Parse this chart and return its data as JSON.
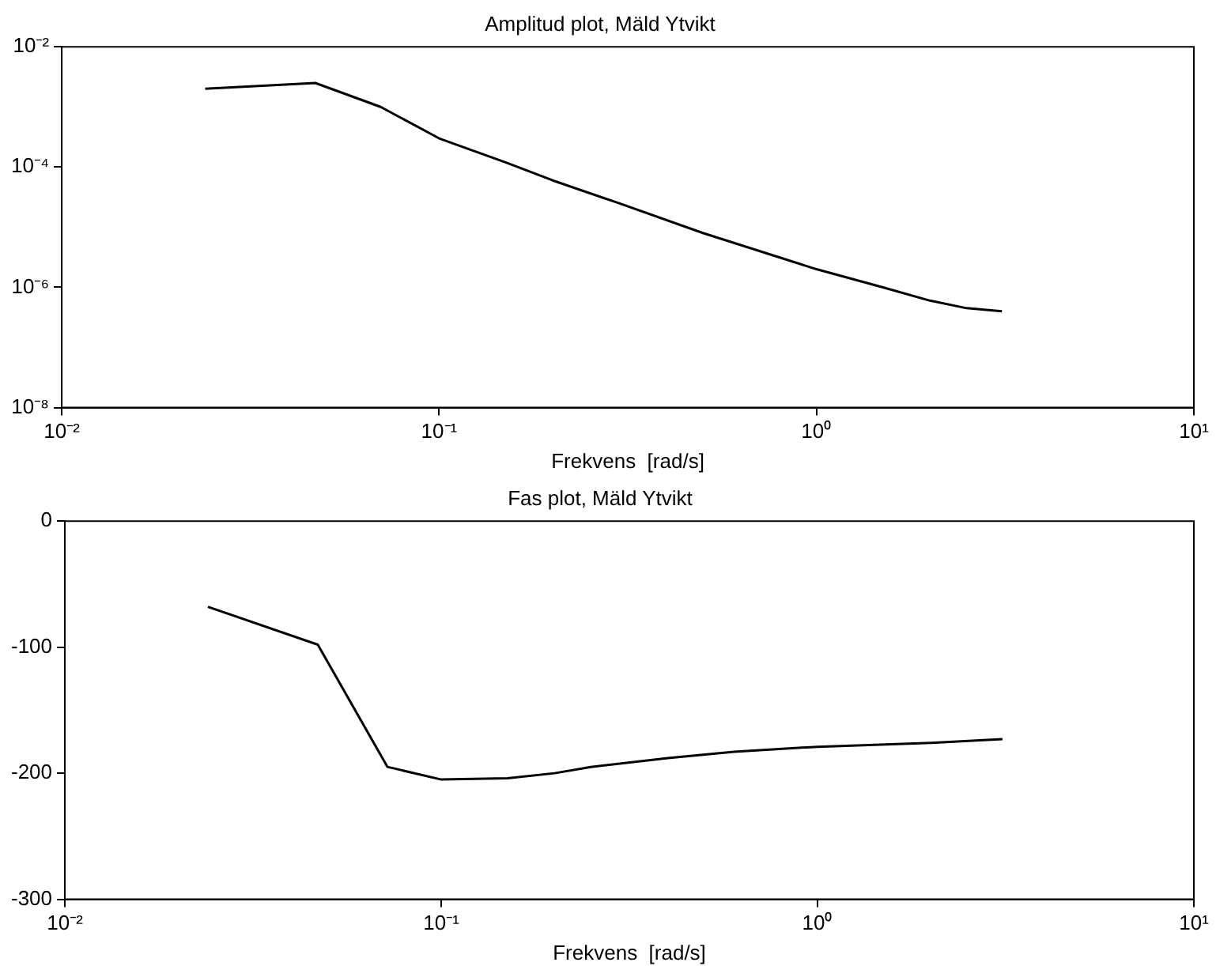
{
  "chart_data": [
    {
      "type": "line",
      "title": "Amplitud plot, Mäld Ytvikt",
      "xlabel": "Frekvens  [rad/s]",
      "log": "xy",
      "grid": false,
      "legend": false,
      "marker": "none",
      "line_style": "solid",
      "xlim": [
        0.01,
        10
      ],
      "xticks": [
        {
          "value": 0.01,
          "label": "10⁻²"
        },
        {
          "value": 0.1,
          "label": "10⁻¹"
        },
        {
          "value": 1,
          "label": "10⁰"
        },
        {
          "value": 10,
          "label": "10¹"
        }
      ],
      "ylim": [
        1e-08,
        0.01
      ],
      "yticks": [
        {
          "value": 1e-08,
          "label": "10⁻⁸"
        },
        {
          "value": 1e-06,
          "label": "10⁻⁶"
        },
        {
          "value": 0.0001,
          "label": "10⁻⁴"
        },
        {
          "value": 0.01,
          "label": "10⁻²"
        }
      ],
      "x": [
        0.024,
        0.047,
        0.07,
        0.1,
        0.15,
        0.2,
        0.3,
        0.5,
        1,
        1.5,
        2,
        2.5,
        3.1
      ],
      "series": [
        {
          "color": "#000000",
          "values": [
            0.002,
            0.0025,
            0.001,
            0.0003,
            0.00012,
            6e-05,
            2.5e-05,
            8e-06,
            2e-06,
            1e-06,
            6e-07,
            4.5e-07,
            4e-07
          ]
        }
      ]
    },
    {
      "type": "line",
      "title": "Fas plot, Mäld Ytvikt",
      "xlabel": "Frekvens  [rad/s]",
      "log": "x",
      "grid": false,
      "legend": false,
      "marker": "none",
      "line_style": "solid",
      "xlim": [
        0.01,
        10
      ],
      "xticks": [
        {
          "value": 0.01,
          "label": "10⁻²"
        },
        {
          "value": 0.1,
          "label": "10⁻¹"
        },
        {
          "value": 1,
          "label": "10⁰"
        },
        {
          "value": 10,
          "label": "10¹"
        }
      ],
      "ylim": [
        -300,
        0
      ],
      "yticks": [
        -300,
        -200,
        -100,
        0
      ],
      "x": [
        0.024,
        0.047,
        0.072,
        0.1,
        0.15,
        0.2,
        0.25,
        0.4,
        0.6,
        1,
        2,
        3.1
      ],
      "series": [
        {
          "color": "#000000",
          "values": [
            -68,
            -98,
            -195,
            -205,
            -204,
            -200,
            -195,
            -188,
            -183,
            -179,
            -176,
            -173
          ]
        }
      ]
    }
  ]
}
